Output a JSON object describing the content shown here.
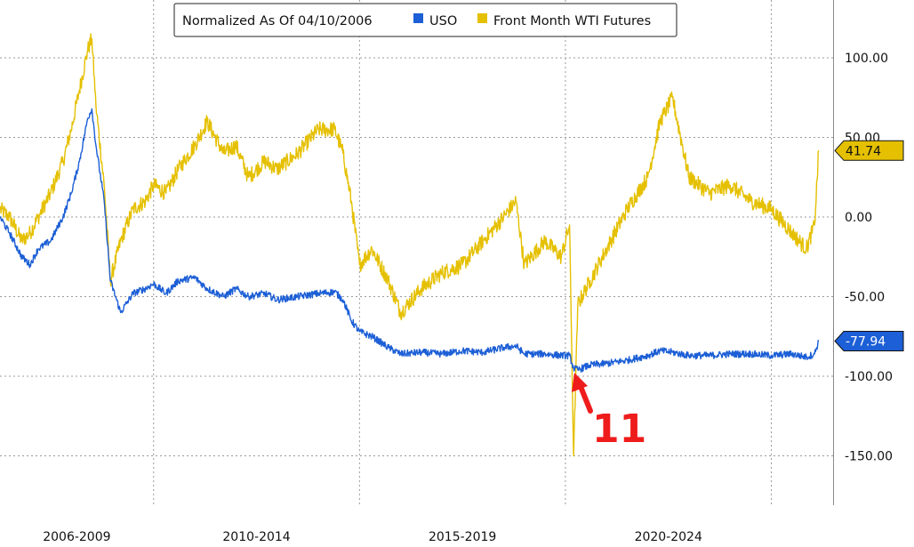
{
  "chart_data": {
    "type": "line",
    "legend": {
      "title": "Normalized As Of 04/10/2006",
      "placement": "top-center",
      "entries": [
        {
          "name": "USO",
          "color": "#1c5fd6"
        },
        {
          "name": "Front Month WTI Futures",
          "color": "#e5c000"
        }
      ]
    },
    "x_ticks": [
      "2006-2009",
      "2010-2014",
      "2015-2019",
      "2020-2024"
    ],
    "x_range": [
      2006.27,
      2026.5
    ],
    "x_period_boundaries": [
      2010.0,
      2015.0,
      2020.0,
      2025.0
    ],
    "y_axis": {
      "position": "right",
      "ylim": [
        -170,
        132
      ],
      "ticks": [
        100,
        50,
        0,
        -50,
        -100,
        -150
      ],
      "tick_labels": [
        "100.00",
        "50.00",
        "0.00",
        "-50.00",
        "-100.00",
        "-150.00"
      ]
    },
    "grid": true,
    "series": [
      {
        "name": "USO",
        "color": "#1c5fd6",
        "last_value_label": "-77.94",
        "x": [
          2006.27,
          2006.5,
          2006.8,
          2007.0,
          2007.2,
          2007.5,
          2007.8,
          2008.0,
          2008.2,
          2008.4,
          2008.5,
          2008.6,
          2008.8,
          2008.95,
          2009.2,
          2009.5,
          2009.8,
          2010.0,
          2010.3,
          2010.6,
          2011.0,
          2011.3,
          2011.7,
          2012.0,
          2012.3,
          2012.7,
          2013.0,
          2013.5,
          2014.0,
          2014.4,
          2014.6,
          2014.8,
          2015.0,
          2015.3,
          2015.7,
          2016.0,
          2016.5,
          2017.0,
          2017.5,
          2018.0,
          2018.5,
          2018.8,
          2019.0,
          2019.5,
          2019.9,
          2020.1,
          2020.2,
          2020.3,
          2020.6,
          2021.0,
          2021.5,
          2022.0,
          2022.3,
          2022.6,
          2023.0,
          2023.5,
          2024.0,
          2024.5,
          2025.0,
          2025.5,
          2025.85,
          2026.05,
          2026.15
        ],
        "y": [
          0,
          -10,
          -25,
          -30,
          -20,
          -15,
          0,
          15,
          35,
          62,
          68,
          45,
          10,
          -40,
          -60,
          -48,
          -45,
          -42,
          -48,
          -40,
          -38,
          -45,
          -50,
          -45,
          -50,
          -48,
          -52,
          -50,
          -48,
          -47,
          -52,
          -65,
          -72,
          -75,
          -82,
          -86,
          -85,
          -86,
          -84,
          -85,
          -82,
          -81,
          -86,
          -86,
          -87,
          -87,
          -95,
          -96,
          -93,
          -92,
          -90,
          -87,
          -84,
          -85,
          -87,
          -87,
          -86,
          -86,
          -87,
          -86,
          -88,
          -86,
          -77.94
        ]
      },
      {
        "name": "Front Month WTI Futures",
        "color": "#e5c000",
        "last_value_label": "41.74",
        "x": [
          2006.27,
          2006.5,
          2006.8,
          2007.0,
          2007.2,
          2007.5,
          2007.8,
          2008.0,
          2008.2,
          2008.4,
          2008.5,
          2008.6,
          2008.8,
          2008.95,
          2009.2,
          2009.5,
          2009.8,
          2010.0,
          2010.3,
          2010.6,
          2011.0,
          2011.3,
          2011.7,
          2012.0,
          2012.3,
          2012.7,
          2013.0,
          2013.5,
          2014.0,
          2014.4,
          2014.6,
          2014.8,
          2015.0,
          2015.3,
          2015.7,
          2016.0,
          2016.5,
          2017.0,
          2017.5,
          2018.0,
          2018.5,
          2018.8,
          2019.0,
          2019.5,
          2019.9,
          2020.1,
          2020.2,
          2020.3,
          2020.6,
          2021.0,
          2021.5,
          2022.0,
          2022.3,
          2022.6,
          2023.0,
          2023.5,
          2024.0,
          2024.5,
          2025.0,
          2025.5,
          2025.85,
          2026.05,
          2026.15
        ],
        "y": [
          5,
          0,
          -15,
          -10,
          0,
          15,
          35,
          55,
          80,
          105,
          112,
          70,
          20,
          -40,
          -15,
          5,
          10,
          20,
          15,
          30,
          45,
          60,
          40,
          45,
          25,
          35,
          30,
          40,
          55,
          55,
          40,
          10,
          -30,
          -20,
          -40,
          -60,
          -45,
          -35,
          -30,
          -15,
          0,
          10,
          -30,
          -15,
          -25,
          -5,
          -150,
          -55,
          -40,
          -20,
          5,
          25,
          60,
          75,
          25,
          15,
          20,
          10,
          5,
          -10,
          -20,
          -5,
          41.74
        ]
      }
    ]
  },
  "annotation": {
    "text": "11",
    "color": "#ef1c1c"
  }
}
